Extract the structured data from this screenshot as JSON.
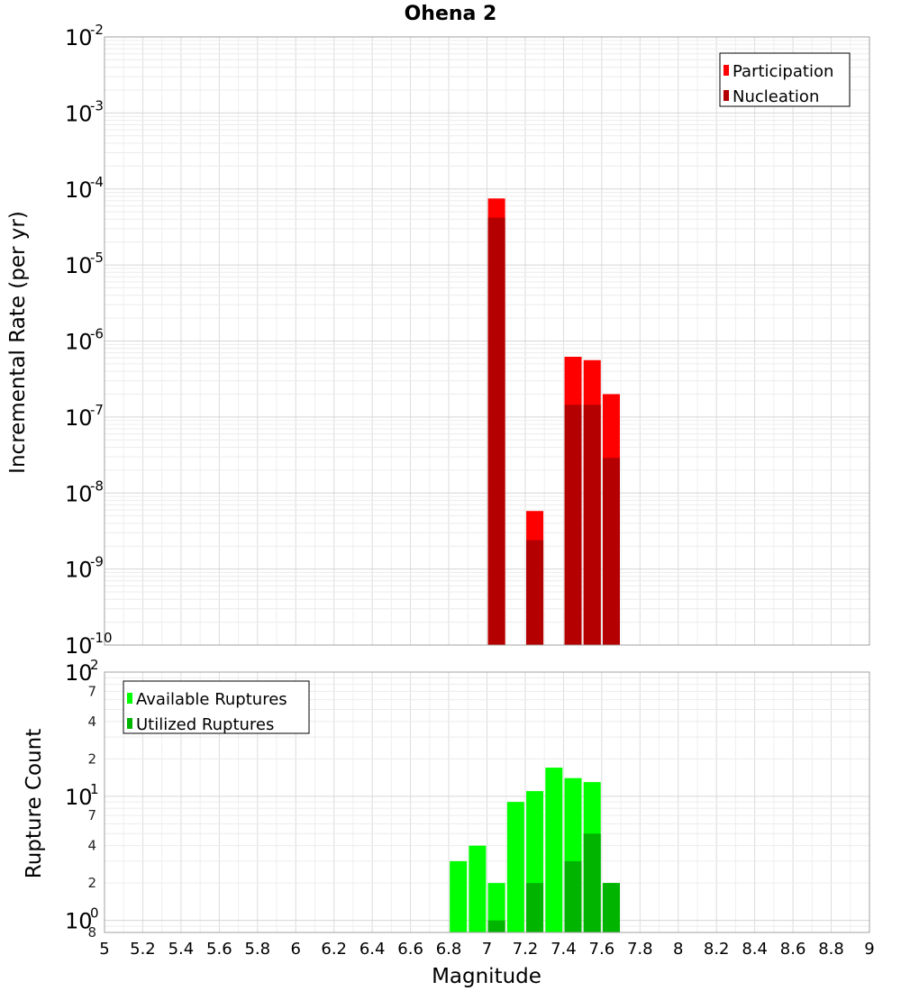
{
  "chart_data": [
    {
      "type": "bar",
      "title": "Ohena 2",
      "ylabel": "Incremental Rate (per yr)",
      "yscale": "log",
      "ylim": [
        1e-10,
        0.01
      ],
      "xlim": [
        5,
        9
      ],
      "grid": true,
      "legend_position": "top-right",
      "y_ticks": [
        {
          "base": "10",
          "exp": "-10",
          "value": 1e-10
        },
        {
          "base": "10",
          "exp": "-9",
          "value": 1e-09
        },
        {
          "base": "10",
          "exp": "-8",
          "value": 1e-08
        },
        {
          "base": "10",
          "exp": "-7",
          "value": 1e-07
        },
        {
          "base": "10",
          "exp": "-6",
          "value": 1e-06
        },
        {
          "base": "10",
          "exp": "-5",
          "value": 1e-05
        },
        {
          "base": "10",
          "exp": "-4",
          "value": 0.0001
        },
        {
          "base": "10",
          "exp": "-3",
          "value": 0.001
        },
        {
          "base": "10",
          "exp": "-2",
          "value": 0.01
        }
      ],
      "series": [
        {
          "name": "Participation",
          "color": "#ff0000",
          "x": [
            7.05,
            7.25,
            7.45,
            7.55,
            7.65
          ],
          "values": [
            7.5e-05,
            5.8e-09,
            6.2e-07,
            5.6e-07,
            2e-07
          ]
        },
        {
          "name": "Nucleation",
          "color": "#b40000",
          "x": [
            7.05,
            7.25,
            7.45,
            7.55,
            7.65
          ],
          "values": [
            4.2e-05,
            2.4e-09,
            1.45e-07,
            1.45e-07,
            2.9e-08
          ]
        }
      ]
    },
    {
      "type": "bar",
      "xlabel": "Magnitude",
      "ylabel": "Rupture Count",
      "yscale": "log",
      "ylim": [
        0.8,
        100
      ],
      "xlim": [
        5,
        9
      ],
      "grid": true,
      "legend_position": "top-left",
      "x_ticks": [
        "5",
        "5.2",
        "5.4",
        "5.6",
        "5.8",
        "6",
        "6.2",
        "6.4",
        "6.6",
        "6.8",
        "7",
        "7.2",
        "7.4",
        "7.6",
        "7.8",
        "8",
        "8.2",
        "8.4",
        "8.6",
        "8.8",
        "9"
      ],
      "y_major_ticks": [
        {
          "base": "10",
          "exp": "0",
          "value": 1
        },
        {
          "base": "10",
          "exp": "1",
          "value": 10
        },
        {
          "base": "10",
          "exp": "2",
          "value": 100
        }
      ],
      "y_minor_ticks": [
        {
          "label": "8",
          "value": 0.8
        },
        {
          "label": "2",
          "value": 2
        },
        {
          "label": "4",
          "value": 4
        },
        {
          "label": "7",
          "value": 7
        },
        {
          "label": "2",
          "value": 20
        },
        {
          "label": "4",
          "value": 40
        },
        {
          "label": "7",
          "value": 70
        }
      ],
      "series": [
        {
          "name": "Available Ruptures",
          "color": "#00ff00",
          "x": [
            6.85,
            6.95,
            7.05,
            7.15,
            7.25,
            7.35,
            7.45,
            7.55,
            7.65
          ],
          "values": [
            3,
            4,
            2,
            9,
            11,
            17,
            14,
            13,
            2
          ]
        },
        {
          "name": "Utilized Ruptures",
          "color": "#00b400",
          "x": [
            7.05,
            7.25,
            7.45,
            7.55,
            7.65
          ],
          "values": [
            1,
            2,
            3,
            5,
            2
          ]
        }
      ]
    }
  ]
}
